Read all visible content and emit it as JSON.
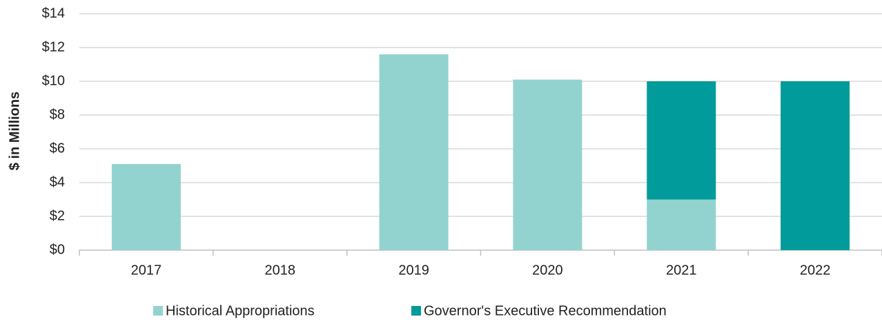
{
  "chart_data": {
    "type": "stacked_bar",
    "y_label": "$ in Millions",
    "categories": [
      "2017",
      "2018",
      "2019",
      "2020",
      "2021",
      "2022"
    ],
    "series": [
      {
        "name": "Historical Appropriations",
        "color": "#92d3cf",
        "values": [
          5.1,
          0,
          11.6,
          10.1,
          3.0,
          0
        ]
      },
      {
        "name": "Governor's Executive Recommendation",
        "color": "#009b9a",
        "values": [
          0,
          0,
          0,
          0,
          7.0,
          10.0
        ]
      }
    ],
    "ylim": [
      0,
      14
    ],
    "yticks": [
      {
        "value": 0,
        "label": "$0"
      },
      {
        "value": 2,
        "label": "$2"
      },
      {
        "value": 4,
        "label": "$4"
      },
      {
        "value": 6,
        "label": "$6"
      },
      {
        "value": 8,
        "label": "$8"
      },
      {
        "value": 10,
        "label": "$10"
      },
      {
        "value": 12,
        "label": "$12"
      },
      {
        "value": 14,
        "label": "$14"
      }
    ],
    "grid": true
  }
}
